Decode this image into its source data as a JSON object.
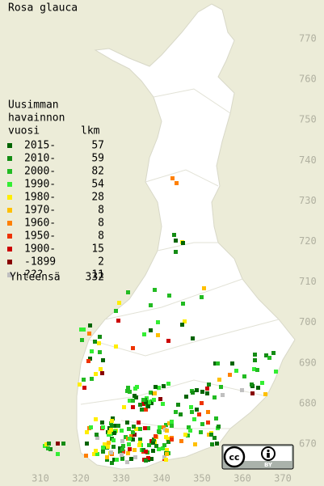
{
  "title": "Rosa glauca",
  "legend": {
    "header": [
      "Uusimman",
      "havainnon",
      "vuosi"
    ],
    "count_header": "lkm",
    "items": [
      {
        "label": "2015-",
        "count": 57,
        "color": "#006400"
      },
      {
        "label": "2010-",
        "count": 59,
        "color": "#148c14"
      },
      {
        "label": "2000-",
        "count": 82,
        "color": "#22bb22"
      },
      {
        "label": "1990-",
        "count": 54,
        "color": "#33ee33"
      },
      {
        "label": "1980-",
        "count": 28,
        "color": "#ffee00"
      },
      {
        "label": "1970-",
        "count": 8,
        "color": "#ffc000"
      },
      {
        "label": "1960-",
        "count": 8,
        "color": "#ff8000"
      },
      {
        "label": "1950-",
        "count": 8,
        "color": "#ee3300"
      },
      {
        "label": "1900-",
        "count": 15,
        "color": "#cc0000"
      },
      {
        "label": "-1899",
        "count": 2,
        "color": "#880000"
      },
      {
        "label": "???",
        "count": 11,
        "color": "#c0c0c0"
      }
    ],
    "total": {
      "label": "Yhteensä",
      "count": 332
    }
  },
  "grid": {
    "north": [
      770,
      760,
      750,
      740,
      730,
      720,
      710,
      700,
      690,
      680,
      670
    ],
    "east": [
      310,
      320,
      330,
      340,
      350,
      360,
      370
    ]
  },
  "license": {
    "cc": "cc",
    "by": "BY"
  }
}
